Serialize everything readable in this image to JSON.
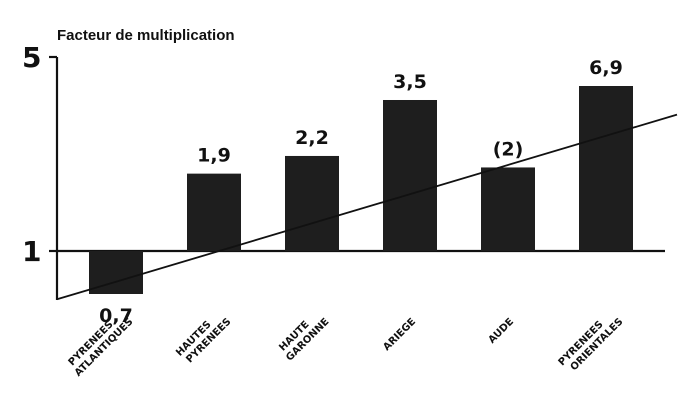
{
  "chart_data": {
    "type": "bar",
    "ylabel": "Facteur de multiplication",
    "yscale": "log",
    "ylim": [
      0.6,
      5
    ],
    "yticks": [
      {
        "value": 5,
        "label": "5"
      },
      {
        "value": 1,
        "label": "1"
      }
    ],
    "categories": [
      [
        "PYRENEES",
        "ATLANTIQUES"
      ],
      [
        "HAUTES",
        "PYRENEES"
      ],
      [
        "HAUTE",
        "GARONNE"
      ],
      [
        "ARIEGE"
      ],
      [
        "AUDE"
      ],
      [
        "PYRENEES",
        "ORIENTALES"
      ]
    ],
    "values": [
      0.7,
      1.9,
      2.2,
      3.5,
      2,
      6.9
    ],
    "value_labels": [
      "0,7",
      "1,9",
      "2,2",
      "3,5",
      "(2)",
      "6,9"
    ],
    "trend_line": {
      "start": 0.67,
      "end": 3.1
    },
    "legend": "none",
    "grid": false,
    "bar_color": "#1e1e1e"
  }
}
